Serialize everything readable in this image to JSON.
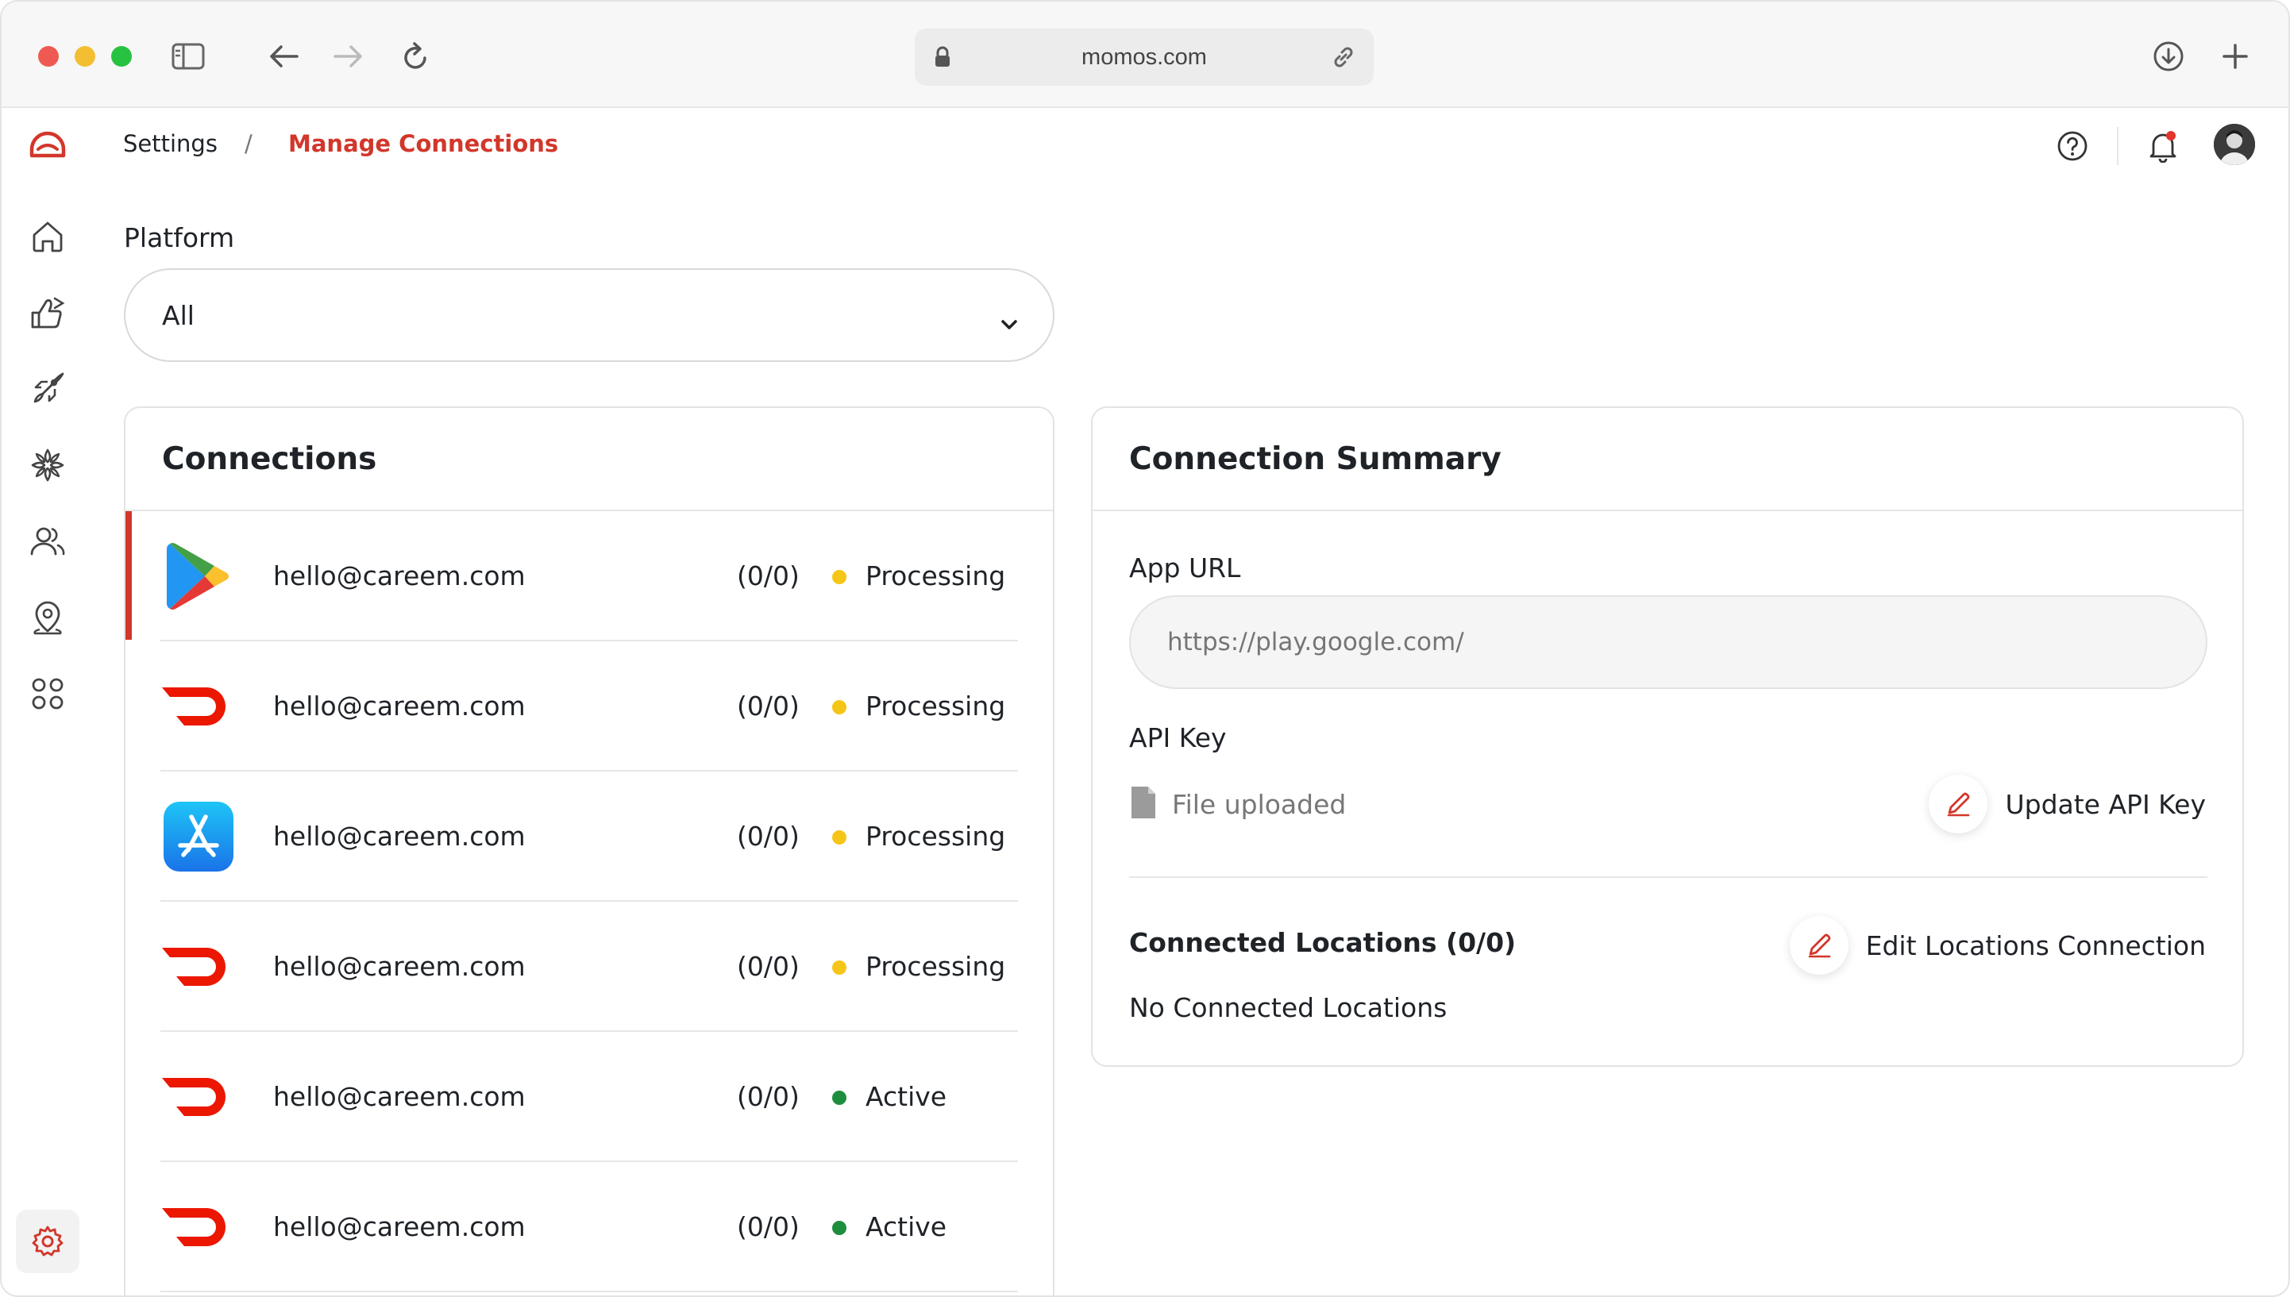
{
  "browser": {
    "url": "momos.com"
  },
  "breadcrumb": {
    "parent": "Settings",
    "separator": "/",
    "current": "Manage Connections"
  },
  "filter": {
    "label": "Platform",
    "selected": "All"
  },
  "connections": {
    "title": "Connections",
    "items": [
      {
        "platform": "google-play",
        "email": "hello@careem.com",
        "count": "(0/0)",
        "status": "Processing",
        "status_color": "#f5c518"
      },
      {
        "platform": "doordash",
        "email": "hello@careem.com",
        "count": "(0/0)",
        "status": "Processing",
        "status_color": "#f5c518"
      },
      {
        "platform": "app-store",
        "email": "hello@careem.com",
        "count": "(0/0)",
        "status": "Processing",
        "status_color": "#f5c518"
      },
      {
        "platform": "doordash",
        "email": "hello@careem.com",
        "count": "(0/0)",
        "status": "Processing",
        "status_color": "#f5c518"
      },
      {
        "platform": "doordash",
        "email": "hello@careem.com",
        "count": "(0/0)",
        "status": "Active",
        "status_color": "#1e8e3e"
      },
      {
        "platform": "doordash",
        "email": "hello@careem.com",
        "count": "(0/0)",
        "status": "Active",
        "status_color": "#1e8e3e"
      }
    ]
  },
  "summary": {
    "title": "Connection Summary",
    "app_url_label": "App URL",
    "app_url_placeholder": "https://play.google.com/",
    "api_key_label": "API Key",
    "file_status": "File uploaded",
    "update_api_key": "Update API Key",
    "locations_title": "Connected Locations (0/0)",
    "edit_locations": "Edit Locations Connection",
    "no_locations": "No Connected Locations"
  },
  "colors": {
    "brand": "#d2372b",
    "doordash": "#eb1700"
  }
}
